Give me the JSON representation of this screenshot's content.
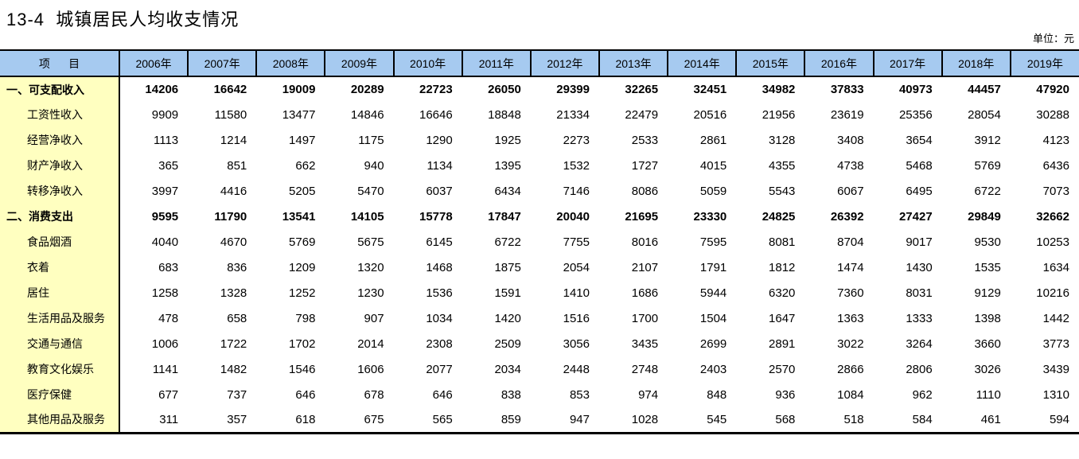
{
  "page": {
    "title": "13-4  城镇居民人均收支情况",
    "unit_label": "单位：元"
  },
  "colors": {
    "header_bg": "#A6CAF0",
    "label_col_bg": "#FFFFC0",
    "border": "#000000"
  },
  "table": {
    "item_header": "项      目",
    "year_headers": [
      "2006年",
      "2007年",
      "2008年",
      "2009年",
      "2010年",
      "2011年",
      "2012年",
      "2013年",
      "2014年",
      "2015年",
      "2016年",
      "2017年",
      "2018年",
      "2019年"
    ],
    "rows": [
      {
        "label": "一、可支配收入",
        "bold": true,
        "indent": false,
        "values": [
          14206,
          16642,
          19009,
          20289,
          22723,
          26050,
          29399,
          32265,
          32451,
          34982,
          37833,
          40973,
          44457,
          47920
        ]
      },
      {
        "label": "工资性收入",
        "bold": false,
        "indent": true,
        "values": [
          9909,
          11580,
          13477,
          14846,
          16646,
          18848,
          21334,
          22479,
          20516,
          21956,
          23619,
          25356,
          28054,
          30288
        ]
      },
      {
        "label": "经营净收入",
        "bold": false,
        "indent": true,
        "values": [
          1113,
          1214,
          1497,
          1175,
          1290,
          1925,
          2273,
          2533,
          2861,
          3128,
          3408,
          3654,
          3912,
          4123
        ]
      },
      {
        "label": "财产净收入",
        "bold": false,
        "indent": true,
        "values": [
          365,
          851,
          662,
          940,
          1134,
          1395,
          1532,
          1727,
          4015,
          4355,
          4738,
          5468,
          5769,
          6436
        ]
      },
      {
        "label": "转移净收入",
        "bold": false,
        "indent": true,
        "values": [
          3997,
          4416,
          5205,
          5470,
          6037,
          6434,
          7146,
          8086,
          5059,
          5543,
          6067,
          6495,
          6722,
          7073
        ]
      },
      {
        "label": "二、消费支出",
        "bold": true,
        "indent": false,
        "values": [
          9595,
          11790,
          13541,
          14105,
          15778,
          17847,
          20040,
          21695,
          23330,
          24825,
          26392,
          27427,
          29849,
          32662
        ]
      },
      {
        "label": "食品烟酒",
        "bold": false,
        "indent": true,
        "values": [
          4040,
          4670,
          5769,
          5675,
          6145,
          6722,
          7755,
          8016,
          7595,
          8081,
          8704,
          9017,
          9530,
          10253
        ]
      },
      {
        "label": "衣着",
        "bold": false,
        "indent": true,
        "values": [
          683,
          836,
          1209,
          1320,
          1468,
          1875,
          2054,
          2107,
          1791,
          1812,
          1474,
          1430,
          1535,
          1634
        ]
      },
      {
        "label": "居住",
        "bold": false,
        "indent": true,
        "values": [
          1258,
          1328,
          1252,
          1230,
          1536,
          1591,
          1410,
          1686,
          5944,
          6320,
          7360,
          8031,
          9129,
          10216
        ]
      },
      {
        "label": "生活用品及服务",
        "bold": false,
        "indent": true,
        "values": [
          478,
          658,
          798,
          907,
          1034,
          1420,
          1516,
          1700,
          1504,
          1647,
          1363,
          1333,
          1398,
          1442
        ]
      },
      {
        "label": "交通与通信",
        "bold": false,
        "indent": true,
        "values": [
          1006,
          1722,
          1702,
          2014,
          2308,
          2509,
          3056,
          3435,
          2699,
          2891,
          3022,
          3264,
          3660,
          3773
        ]
      },
      {
        "label": "教育文化娱乐",
        "bold": false,
        "indent": true,
        "values": [
          1141,
          1482,
          1546,
          1606,
          2077,
          2034,
          2448,
          2748,
          2403,
          2570,
          2866,
          2806,
          3026,
          3439
        ]
      },
      {
        "label": "医疗保健",
        "bold": false,
        "indent": true,
        "values": [
          677,
          737,
          646,
          678,
          646,
          838,
          853,
          974,
          848,
          936,
          1084,
          962,
          1110,
          1310
        ]
      },
      {
        "label": "其他用品及服务",
        "bold": false,
        "indent": true,
        "values": [
          311,
          357,
          618,
          675,
          565,
          859,
          947,
          1028,
          545,
          568,
          518,
          584,
          461,
          594
        ]
      }
    ]
  }
}
